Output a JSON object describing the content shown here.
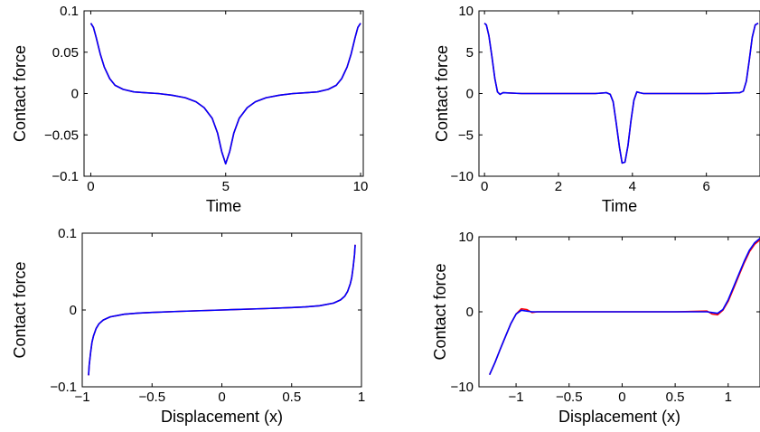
{
  "chart_data": [
    {
      "type": "line",
      "xlabel": "Time",
      "ylabel": "Contact force",
      "xlim": [
        -0.25,
        10.1
      ],
      "ylim": [
        -0.1,
        0.1
      ],
      "xticks": [
        0,
        5,
        10
      ],
      "xtick_labels": [
        "0",
        "5",
        "10"
      ],
      "yticks": [
        0.1,
        0.05,
        0,
        -0.05,
        -0.1
      ],
      "ytick_labels": [
        "0.1",
        "0.05",
        "0",
        "−0.05",
        "−0.1"
      ],
      "grid": false,
      "legend": "none",
      "series": [
        {
          "color": "#ff0000",
          "x": [
            0,
            0.1,
            0.2,
            0.35,
            0.5,
            0.7,
            0.9,
            1.2,
            1.6,
            2.0,
            2.5,
            3.0,
            3.5,
            3.9,
            4.2,
            4.5,
            4.7,
            4.85,
            5.0,
            5.15,
            5.3,
            5.5,
            5.8,
            6.1,
            6.5,
            7.0,
            7.5,
            8.0,
            8.4,
            8.8,
            9.1,
            9.3,
            9.5,
            9.65,
            9.8,
            9.9,
            10.0
          ],
          "y": [
            0.085,
            0.08,
            0.068,
            0.048,
            0.032,
            0.018,
            0.01,
            0.005,
            0.002,
            0.001,
            0.0,
            -0.002,
            -0.005,
            -0.01,
            -0.017,
            -0.03,
            -0.048,
            -0.07,
            -0.085,
            -0.07,
            -0.048,
            -0.03,
            -0.017,
            -0.01,
            -0.005,
            -0.002,
            0.0,
            0.001,
            0.002,
            0.005,
            0.01,
            0.018,
            0.032,
            0.048,
            0.068,
            0.08,
            0.085
          ]
        },
        {
          "color": "#0000ff",
          "x": [
            0,
            0.1,
            0.2,
            0.35,
            0.5,
            0.7,
            0.9,
            1.2,
            1.6,
            2.0,
            2.5,
            3.0,
            3.5,
            3.9,
            4.2,
            4.5,
            4.7,
            4.85,
            5.0,
            5.15,
            5.3,
            5.5,
            5.8,
            6.1,
            6.5,
            7.0,
            7.5,
            8.0,
            8.4,
            8.8,
            9.1,
            9.3,
            9.5,
            9.65,
            9.8,
            9.9,
            10.0
          ],
          "y": [
            0.085,
            0.08,
            0.068,
            0.048,
            0.032,
            0.018,
            0.01,
            0.005,
            0.002,
            0.001,
            0.0,
            -0.002,
            -0.005,
            -0.01,
            -0.017,
            -0.03,
            -0.048,
            -0.07,
            -0.085,
            -0.07,
            -0.048,
            -0.03,
            -0.017,
            -0.01,
            -0.005,
            -0.002,
            0.0,
            0.001,
            0.002,
            0.005,
            0.01,
            0.018,
            0.032,
            0.048,
            0.068,
            0.08,
            0.085
          ]
        }
      ]
    },
    {
      "type": "line",
      "xlabel": "Time",
      "ylabel": "Contact force",
      "xlim": [
        -0.15,
        7.45
      ],
      "ylim": [
        -10,
        10
      ],
      "xticks": [
        0,
        2,
        4,
        6
      ],
      "xtick_labels": [
        "0",
        "2",
        "4",
        "6"
      ],
      "yticks": [
        10,
        5,
        0,
        -5,
        -10
      ],
      "ytick_labels": [
        "10",
        "5",
        "0",
        "−5",
        "−10"
      ],
      "grid": false,
      "legend": "none",
      "series": [
        {
          "color": "#ff0000",
          "x": [
            0,
            0.05,
            0.12,
            0.2,
            0.28,
            0.35,
            0.42,
            0.5,
            1.0,
            2.0,
            3.0,
            3.3,
            3.4,
            3.48,
            3.56,
            3.65,
            3.72,
            3.8,
            3.88,
            3.96,
            4.04,
            4.12,
            4.2,
            4.3,
            5.0,
            6.0,
            6.9,
            7.0,
            7.08,
            7.16,
            7.24,
            7.32,
            7.4
          ],
          "y": [
            8.5,
            8.3,
            7.0,
            4.5,
            1.8,
            0.2,
            -0.1,
            0.1,
            0.0,
            0.0,
            0.0,
            0.1,
            -0.1,
            -1.0,
            -3.5,
            -6.5,
            -8.4,
            -8.3,
            -6.3,
            -3.3,
            -0.8,
            0.2,
            0.1,
            0.0,
            0.0,
            0.0,
            0.1,
            0.3,
            1.5,
            4.0,
            6.8,
            8.3,
            8.5
          ]
        },
        {
          "color": "#0000ff",
          "x": [
            0,
            0.05,
            0.12,
            0.2,
            0.28,
            0.35,
            0.42,
            0.5,
            1.0,
            2.0,
            3.0,
            3.3,
            3.4,
            3.48,
            3.56,
            3.65,
            3.72,
            3.8,
            3.88,
            3.96,
            4.04,
            4.12,
            4.2,
            4.3,
            5.0,
            6.0,
            6.9,
            7.0,
            7.08,
            7.16,
            7.24,
            7.32,
            7.4
          ],
          "y": [
            8.5,
            8.3,
            7.0,
            4.5,
            1.8,
            0.2,
            -0.1,
            0.1,
            0.0,
            0.0,
            0.0,
            0.1,
            -0.1,
            -1.0,
            -3.5,
            -6.5,
            -8.4,
            -8.3,
            -6.3,
            -3.3,
            -0.8,
            0.2,
            0.1,
            0.0,
            0.0,
            0.0,
            0.1,
            0.3,
            1.5,
            4.0,
            6.8,
            8.3,
            8.5
          ]
        }
      ]
    },
    {
      "type": "line",
      "xlabel": "Displacement (x)",
      "ylabel": "Contact force",
      "xlim": [
        -1,
        1
      ],
      "ylim": [
        -0.1,
        0.1
      ],
      "xticks": [
        -1,
        -0.5,
        0,
        0.5,
        1
      ],
      "xtick_labels": [
        "−1",
        "−0.5",
        "0",
        "0.5",
        "1"
      ],
      "yticks": [
        0.1,
        0,
        -0.1
      ],
      "ytick_labels": [
        "0.1",
        "0",
        "−0.1"
      ],
      "grid": false,
      "legend": "none",
      "series": [
        {
          "color": "#ff0000",
          "x": [
            -0.955,
            -0.95,
            -0.94,
            -0.93,
            -0.92,
            -0.9,
            -0.88,
            -0.85,
            -0.8,
            -0.7,
            -0.6,
            -0.5,
            -0.3,
            0.0,
            0.3,
            0.5,
            0.6,
            0.7,
            0.8,
            0.85,
            0.88,
            0.9,
            0.92,
            0.93,
            0.94,
            0.95,
            0.955
          ],
          "y": [
            -0.085,
            -0.072,
            -0.055,
            -0.042,
            -0.034,
            -0.024,
            -0.018,
            -0.013,
            -0.009,
            -0.0055,
            -0.004,
            -0.0032,
            -0.0018,
            0.0,
            0.0018,
            0.0032,
            0.004,
            0.0055,
            0.009,
            0.013,
            0.018,
            0.024,
            0.034,
            0.042,
            0.055,
            0.072,
            0.085
          ]
        },
        {
          "color": "#0000ff",
          "x": [
            -0.955,
            -0.95,
            -0.94,
            -0.93,
            -0.92,
            -0.9,
            -0.88,
            -0.85,
            -0.8,
            -0.7,
            -0.6,
            -0.5,
            -0.3,
            0.0,
            0.3,
            0.5,
            0.6,
            0.7,
            0.8,
            0.85,
            0.88,
            0.9,
            0.92,
            0.93,
            0.94,
            0.95,
            0.955
          ],
          "y": [
            -0.085,
            -0.072,
            -0.055,
            -0.042,
            -0.034,
            -0.024,
            -0.018,
            -0.013,
            -0.009,
            -0.0055,
            -0.004,
            -0.0032,
            -0.0018,
            0.0,
            0.0018,
            0.0032,
            0.004,
            0.0055,
            0.009,
            0.013,
            0.018,
            0.024,
            0.034,
            0.042,
            0.055,
            0.072,
            0.085
          ]
        }
      ]
    },
    {
      "type": "line",
      "xlabel": "Displacement (x)",
      "ylabel": "Contact force",
      "xlim": [
        -1.35,
        1.3
      ],
      "ylim": [
        -10,
        10
      ],
      "xticks": [
        -1,
        -0.5,
        0,
        0.5,
        1
      ],
      "xtick_labels": [
        "−1",
        "−0.5",
        "0",
        "0.5",
        "1"
      ],
      "yticks": [
        10,
        0,
        -10
      ],
      "ytick_labels": [
        "10",
        "0",
        "−10"
      ],
      "grid": false,
      "legend": "none",
      "series": [
        {
          "color": "#ff0000",
          "x": [
            -1.25,
            -1.2,
            -1.15,
            -1.1,
            -1.05,
            -1.0,
            -0.95,
            -0.9,
            -0.85,
            -0.8,
            -0.5,
            0.0,
            0.5,
            0.8,
            0.85,
            0.9,
            0.95,
            1.0,
            1.05,
            1.1,
            1.15,
            1.2,
            1.25,
            1.3
          ],
          "y": [
            -8.4,
            -6.8,
            -5.0,
            -3.3,
            -1.6,
            -0.3,
            0.4,
            0.3,
            -0.1,
            0.0,
            0.0,
            0.0,
            0.0,
            0.1,
            -0.3,
            -0.4,
            0.2,
            1.4,
            3.1,
            4.8,
            6.5,
            8.0,
            9.0,
            9.6
          ]
        },
        {
          "color": "#0000ff",
          "x": [
            -1.25,
            -1.2,
            -1.15,
            -1.1,
            -1.05,
            -1.0,
            -0.95,
            -0.9,
            -0.85,
            -0.8,
            -0.5,
            0.0,
            0.5,
            0.8,
            0.85,
            0.9,
            0.95,
            1.0,
            1.05,
            1.1,
            1.15,
            1.2,
            1.25,
            1.3
          ],
          "y": [
            -8.4,
            -6.8,
            -5.0,
            -3.3,
            -1.6,
            -0.3,
            0.2,
            0.1,
            0.0,
            0.0,
            0.0,
            0.0,
            0.0,
            0.0,
            -0.1,
            -0.2,
            0.3,
            1.6,
            3.3,
            5.0,
            6.7,
            8.2,
            9.2,
            9.8
          ]
        }
      ]
    }
  ]
}
